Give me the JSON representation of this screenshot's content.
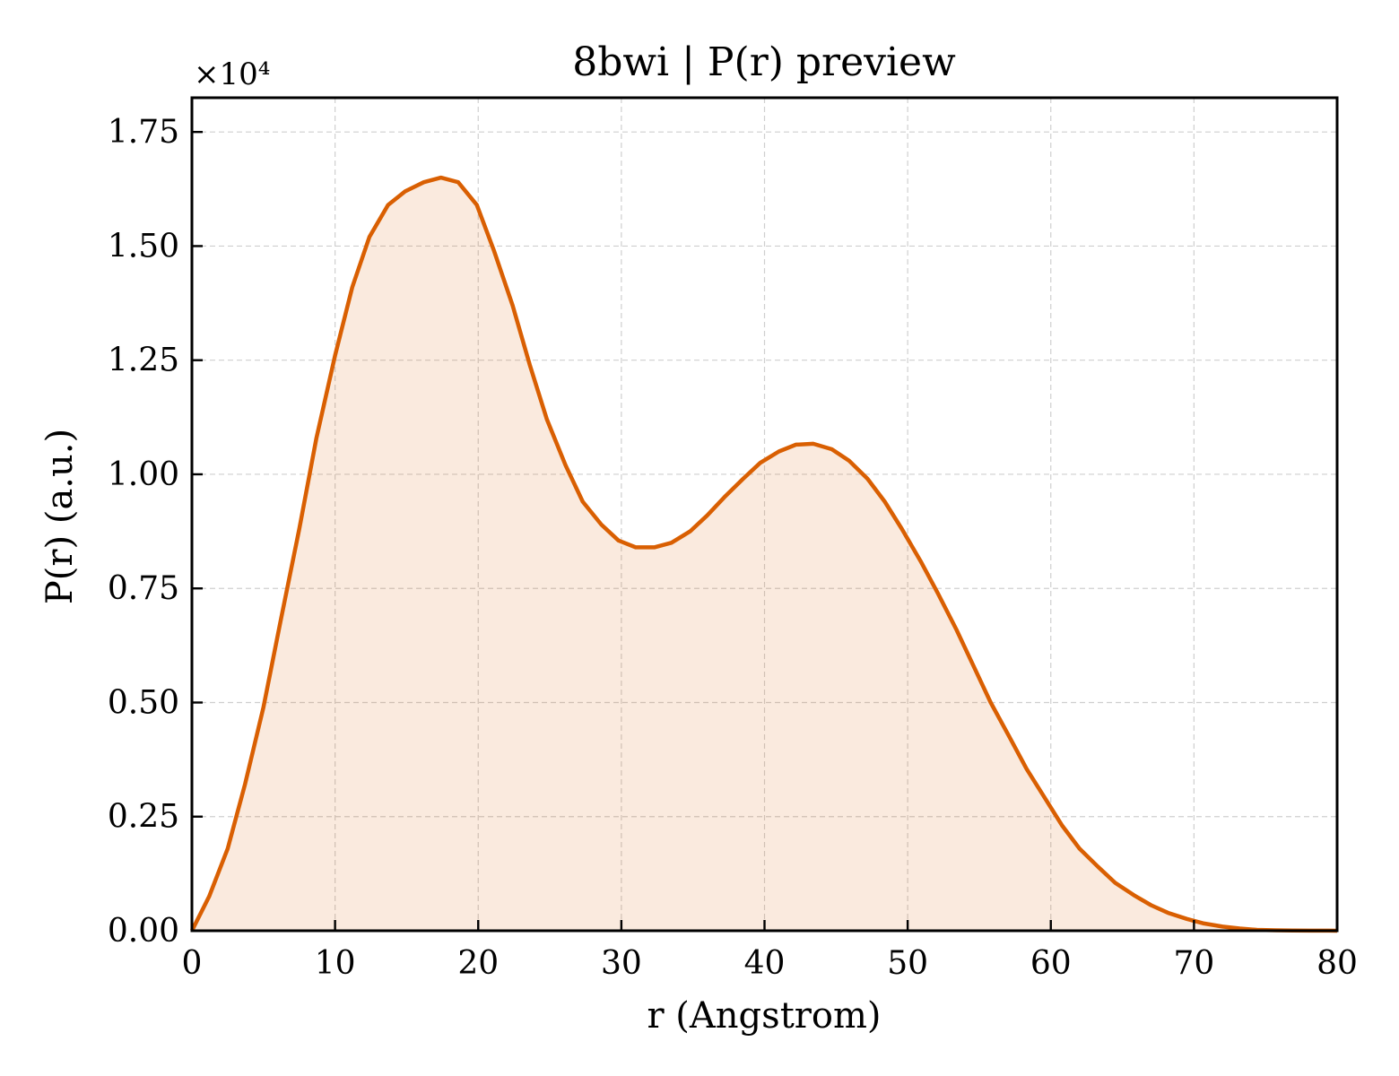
{
  "chart_data": {
    "type": "area",
    "title": "8bwi | P(r) preview",
    "xlabel": "r (Angstrom)",
    "ylabel": "P(r) (a.u.)",
    "y_offset_label": "×10⁴",
    "xlim": [
      0,
      80
    ],
    "ylim": [
      0,
      1.825
    ],
    "xticks": [
      0,
      10,
      20,
      30,
      40,
      50,
      60,
      70,
      80
    ],
    "xtick_labels": [
      "0",
      "10",
      "20",
      "30",
      "40",
      "50",
      "60",
      "70",
      "80"
    ],
    "yticks": [
      0,
      0.25,
      0.5,
      0.75,
      1.0,
      1.25,
      1.5,
      1.75
    ],
    "ytick_labels": [
      "0.00",
      "0.25",
      "0.50",
      "0.75",
      "1.00",
      "1.25",
      "1.50",
      "1.75"
    ],
    "grid": true,
    "line_color": "#d95f02",
    "fill_color": "#d95f02",
    "x": [
      0,
      1.2,
      2.5,
      3.7,
      5.0,
      6.2,
      7.5,
      8.7,
      10.0,
      11.2,
      12.4,
      13.7,
      14.9,
      16.2,
      17.4,
      18.6,
      19.9,
      21.1,
      22.4,
      23.6,
      24.8,
      26.1,
      27.3,
      28.6,
      29.8,
      31.0,
      32.3,
      33.5,
      34.8,
      36.0,
      37.2,
      38.5,
      39.7,
      41.0,
      42.2,
      43.4,
      44.7,
      45.9,
      47.2,
      48.4,
      49.6,
      50.9,
      52.1,
      53.4,
      54.6,
      55.8,
      57.1,
      58.3,
      59.6,
      60.8,
      62.0,
      63.3,
      64.5,
      65.8,
      67.0,
      68.2,
      69.5,
      70.7,
      72.0,
      73.2,
      74.4,
      75.7,
      76.9,
      78.2,
      79.4,
      80.0
    ],
    "series": [
      {
        "values": [
          0.0,
          0.075,
          0.18,
          0.32,
          0.49,
          0.68,
          0.88,
          1.08,
          1.26,
          1.41,
          1.52,
          1.59,
          1.62,
          1.64,
          1.65,
          1.64,
          1.59,
          1.49,
          1.37,
          1.24,
          1.12,
          1.02,
          0.94,
          0.89,
          0.855,
          0.84,
          0.84,
          0.85,
          0.875,
          0.91,
          0.95,
          0.99,
          1.025,
          1.05,
          1.065,
          1.067,
          1.055,
          1.03,
          0.99,
          0.94,
          0.88,
          0.81,
          0.74,
          0.66,
          0.58,
          0.5,
          0.425,
          0.355,
          0.29,
          0.23,
          0.18,
          0.14,
          0.105,
          0.078,
          0.056,
          0.039,
          0.026,
          0.016,
          0.009,
          0.005,
          0.002,
          0.001,
          0.0005,
          0.0002,
          0.0001,
          0.0
        ]
      }
    ]
  }
}
